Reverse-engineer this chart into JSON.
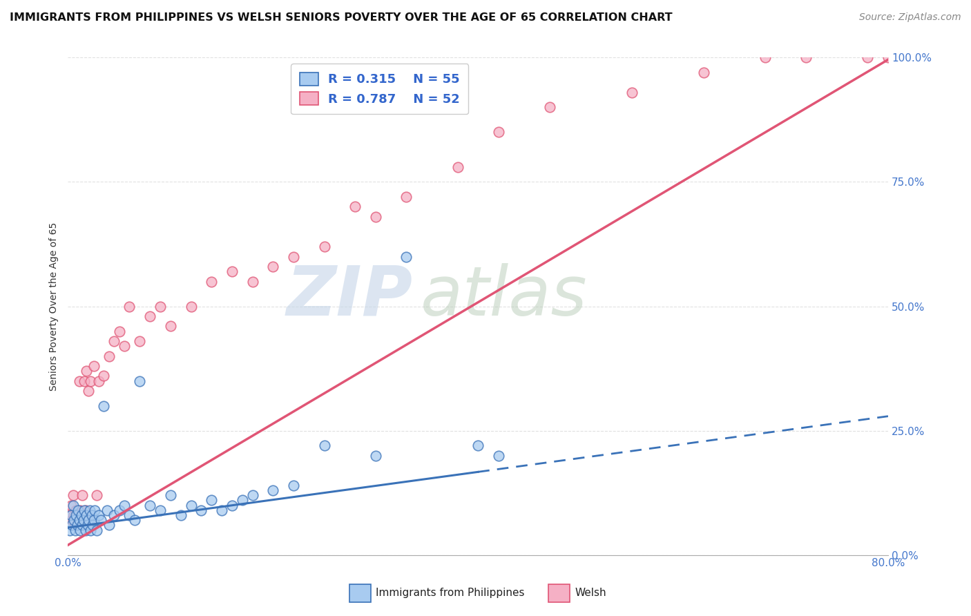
{
  "title": "IMMIGRANTS FROM PHILIPPINES VS WELSH SENIORS POVERTY OVER THE AGE OF 65 CORRELATION CHART",
  "source": "Source: ZipAtlas.com",
  "ylabel": "Seniors Poverty Over the Age of 65",
  "xlim": [
    0.0,
    80.0
  ],
  "ylim": [
    0.0,
    100.0
  ],
  "x_ticks": [
    0.0,
    80.0
  ],
  "x_tick_labels": [
    "0.0%",
    "80.0%"
  ],
  "y_ticks": [
    0.0,
    25.0,
    50.0,
    75.0,
    100.0
  ],
  "y_tick_labels": [
    "0.0%",
    "25.0%",
    "50.0%",
    "75.0%",
    "100.0%"
  ],
  "legend_r1": "R = 0.315",
  "legend_n1": "N = 55",
  "legend_r2": "R = 0.787",
  "legend_n2": "N = 52",
  "color_philippines": "#A8CBF0",
  "color_welsh": "#F5B0C5",
  "color_trend_philippines": "#3A72B8",
  "color_trend_welsh": "#E05575",
  "watermark_zip": "ZIP",
  "watermark_atlas": "atlas",
  "watermark_color_zip": "#C5D5E8",
  "watermark_color_atlas": "#B8CCB8",
  "bg_color": "#FFFFFF",
  "grid_color": "#DDDDDD",
  "philippines_scatter_x": [
    0.2,
    0.3,
    0.4,
    0.5,
    0.6,
    0.7,
    0.8,
    0.9,
    1.0,
    1.1,
    1.2,
    1.3,
    1.4,
    1.5,
    1.6,
    1.7,
    1.8,
    1.9,
    2.0,
    2.1,
    2.2,
    2.3,
    2.4,
    2.5,
    2.6,
    2.8,
    3.0,
    3.2,
    3.5,
    3.8,
    4.0,
    4.5,
    5.0,
    5.5,
    6.0,
    6.5,
    7.0,
    8.0,
    9.0,
    10.0,
    11.0,
    12.0,
    13.0,
    14.0,
    15.0,
    16.0,
    17.0,
    18.0,
    20.0,
    22.0,
    25.0,
    30.0,
    33.0,
    40.0,
    42.0
  ],
  "philippines_scatter_y": [
    5.0,
    8.0,
    6.0,
    10.0,
    7.0,
    5.0,
    8.0,
    6.0,
    9.0,
    7.0,
    5.0,
    8.0,
    6.0,
    7.0,
    9.0,
    5.0,
    8.0,
    6.0,
    7.0,
    9.0,
    5.0,
    8.0,
    6.0,
    7.0,
    9.0,
    5.0,
    8.0,
    7.0,
    30.0,
    9.0,
    6.0,
    8.0,
    9.0,
    10.0,
    8.0,
    7.0,
    35.0,
    10.0,
    9.0,
    12.0,
    8.0,
    10.0,
    9.0,
    11.0,
    9.0,
    10.0,
    11.0,
    12.0,
    13.0,
    14.0,
    22.0,
    20.0,
    60.0,
    22.0,
    20.0
  ],
  "welsh_scatter_x": [
    0.2,
    0.3,
    0.4,
    0.5,
    0.6,
    0.7,
    0.8,
    0.9,
    1.0,
    1.1,
    1.2,
    1.3,
    1.4,
    1.5,
    1.6,
    1.7,
    1.8,
    1.9,
    2.0,
    2.2,
    2.5,
    2.8,
    3.0,
    3.5,
    4.0,
    4.5,
    5.0,
    5.5,
    6.0,
    7.0,
    8.0,
    9.0,
    10.0,
    12.0,
    14.0,
    16.0,
    18.0,
    20.0,
    22.0,
    25.0,
    28.0,
    30.0,
    33.0,
    38.0,
    42.0,
    47.0,
    55.0,
    62.0,
    68.0,
    72.0,
    78.0,
    80.0
  ],
  "welsh_scatter_y": [
    8.0,
    10.0,
    7.0,
    12.0,
    8.0,
    6.0,
    9.0,
    7.0,
    8.0,
    35.0,
    9.0,
    7.0,
    12.0,
    8.0,
    35.0,
    9.0,
    37.0,
    8.0,
    33.0,
    35.0,
    38.0,
    12.0,
    35.0,
    36.0,
    40.0,
    43.0,
    45.0,
    42.0,
    50.0,
    43.0,
    48.0,
    50.0,
    46.0,
    50.0,
    55.0,
    57.0,
    55.0,
    58.0,
    60.0,
    62.0,
    70.0,
    68.0,
    72.0,
    78.0,
    85.0,
    90.0,
    93.0,
    97.0,
    100.0,
    100.0,
    100.0,
    100.0
  ],
  "trend_phil_x_solid_end": 40.0,
  "trend_phil_slope": 0.28,
  "trend_phil_intercept": 5.5,
  "trend_welsh_slope": 1.22,
  "trend_welsh_intercept": 2.0
}
